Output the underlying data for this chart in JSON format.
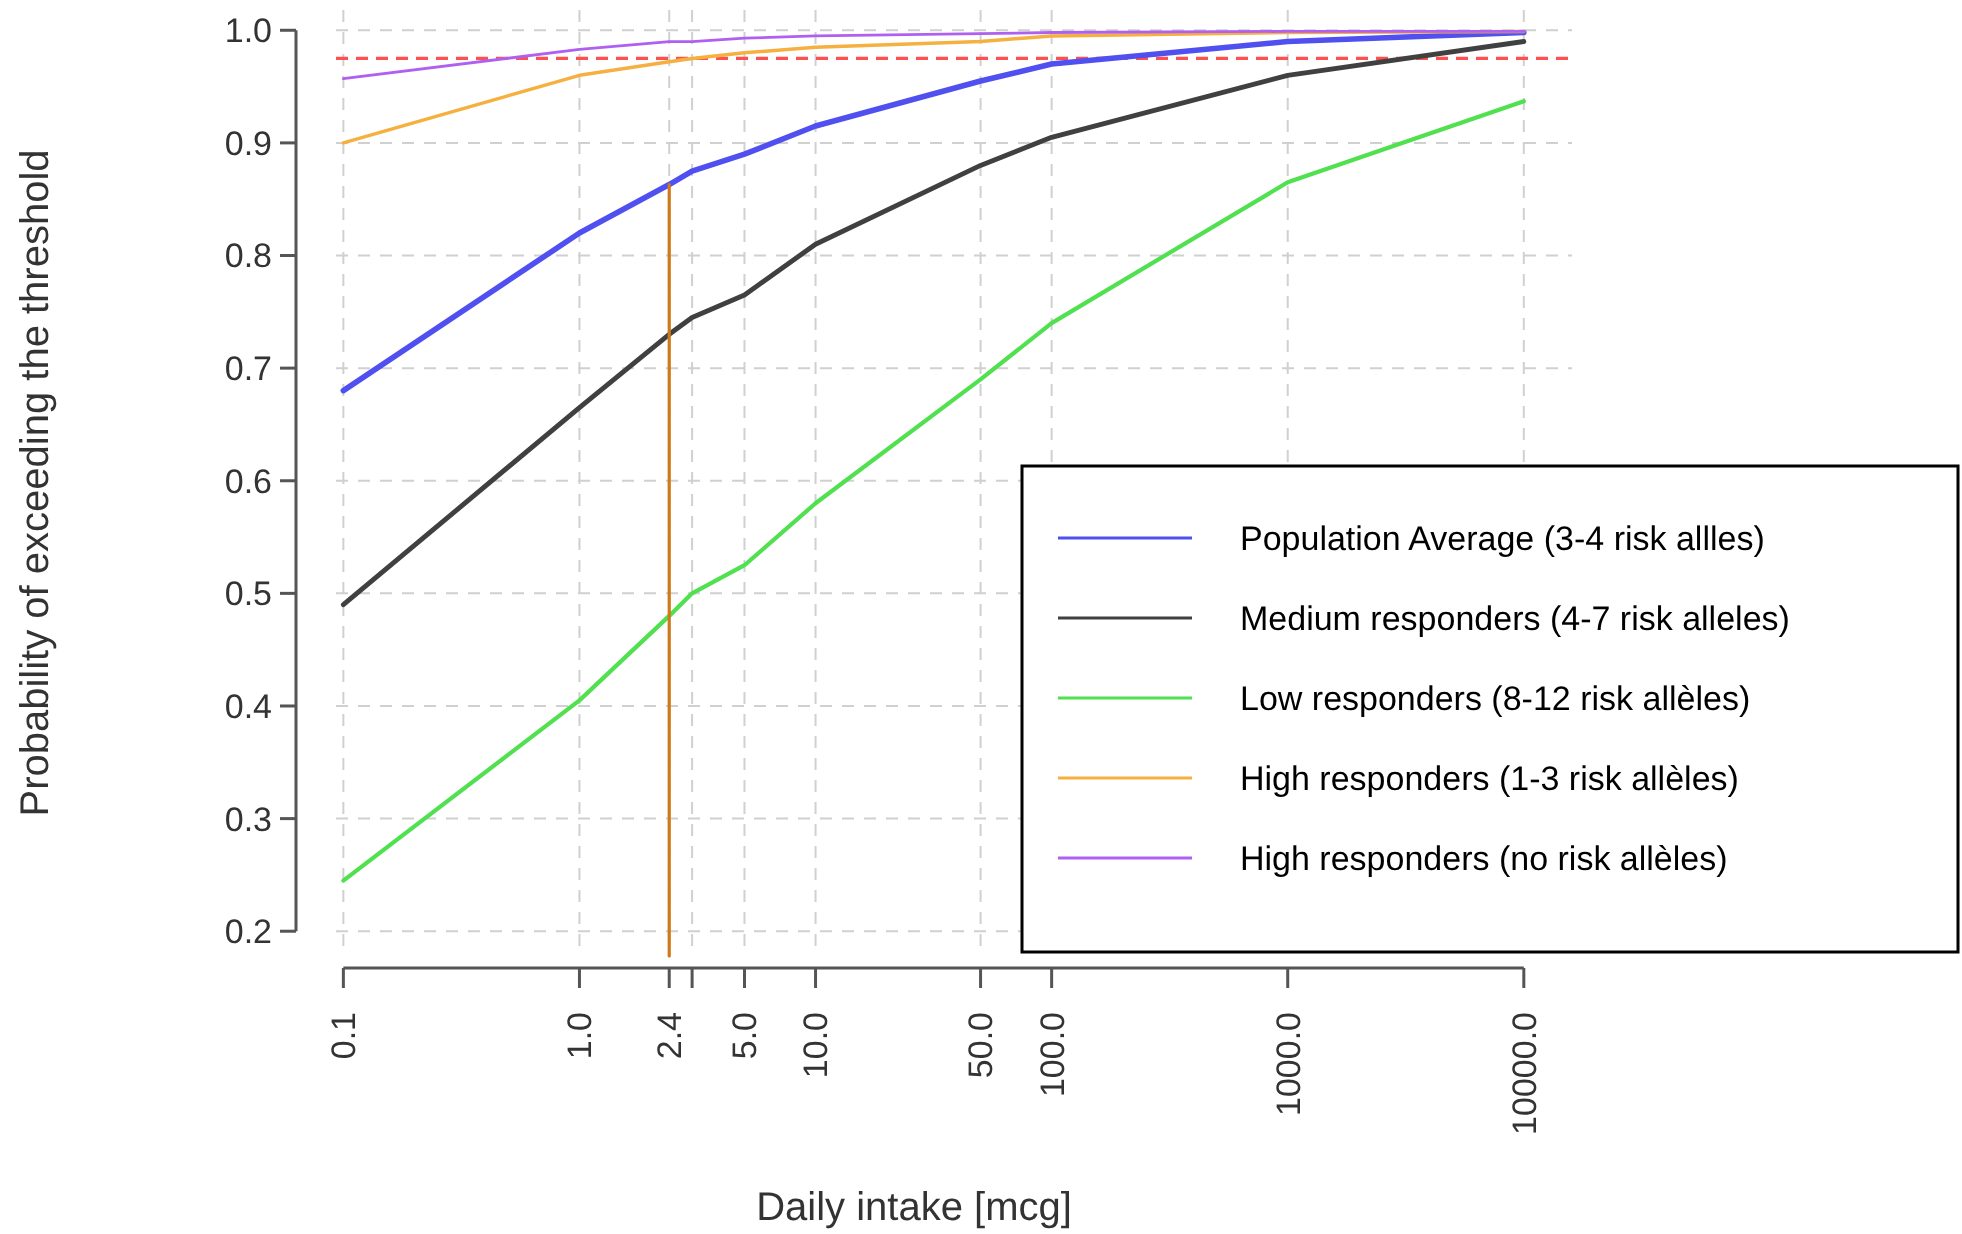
{
  "chart_data": {
    "type": "line",
    "xlabel": "Daily intake [mcg]",
    "ylabel": "Probability of exceeding the threshold",
    "log": "x",
    "grid": true,
    "legend": "bottom right",
    "line_style": "solid",
    "marker": "none",
    "x": [
      0.1,
      1,
      2.4,
      3,
      5,
      10,
      50,
      100,
      1000,
      10000
    ],
    "xlim": [
      0.063,
      16000
    ],
    "ylim": [
      0.178,
      1.018
    ],
    "xticks": [
      0.1,
      {
        "value": 1,
        "label": "1.0"
      },
      2.4,
      {
        "value": 3,
        "label": null
      },
      {
        "value": 5,
        "label": "5.0"
      },
      {
        "value": 10,
        "label": "10.0"
      },
      {
        "value": 50,
        "label": "50.0"
      },
      {
        "value": 100,
        "label": "100.0"
      },
      {
        "value": 1000,
        "label": "1000.0"
      },
      {
        "value": 10000,
        "label": "10000.0"
      }
    ],
    "yticks": [
      0.2,
      0.3,
      0.4,
      0.5,
      0.6,
      0.7,
      0.8,
      0.9,
      {
        "value": 1,
        "label": "1.0"
      }
    ],
    "series": [
      {
        "name": "Population Average (3-4 risk allles)",
        "color": "#5050f0",
        "values": [
          0.68,
          0.82,
          0.863,
          0.875,
          0.89,
          0.915,
          0.955,
          0.97,
          0.99,
          0.998
        ]
      },
      {
        "name": "Medium responders (4-7 risk alleles)",
        "color": "#404040",
        "values": [
          0.49,
          0.665,
          0.73,
          0.745,
          0.765,
          0.81,
          0.88,
          0.905,
          0.96,
          0.99
        ]
      },
      {
        "name": "Low responders (8-12 risk allèles)",
        "color": "#50e050",
        "values": [
          0.245,
          0.405,
          0.48,
          0.5,
          0.525,
          0.58,
          0.69,
          0.74,
          0.865,
          0.937
        ]
      },
      {
        "name": "High responders (1-3 risk allèles)",
        "color": "#f5b040",
        "values": [
          0.9,
          0.96,
          0.972,
          0.975,
          0.98,
          0.985,
          0.99,
          0.995,
          0.998,
          0.999
        ]
      },
      {
        "name": "High responders (no risk allèles)",
        "color": "#b060f0",
        "values": [
          0.957,
          0.983,
          0.99,
          0.99,
          0.993,
          0.995,
          0.997,
          0.998,
          0.999,
          0.999
        ]
      },
      {
        "color": "#d0781a",
        "x": [
          2.4,
          2.4
        ],
        "values": [
          0.178,
          0.863
        ]
      }
    ],
    "ref_lines": [
      {
        "axis": "y",
        "value": 0.975,
        "color": "#ff5050",
        "line_style": "dashed"
      }
    ]
  }
}
